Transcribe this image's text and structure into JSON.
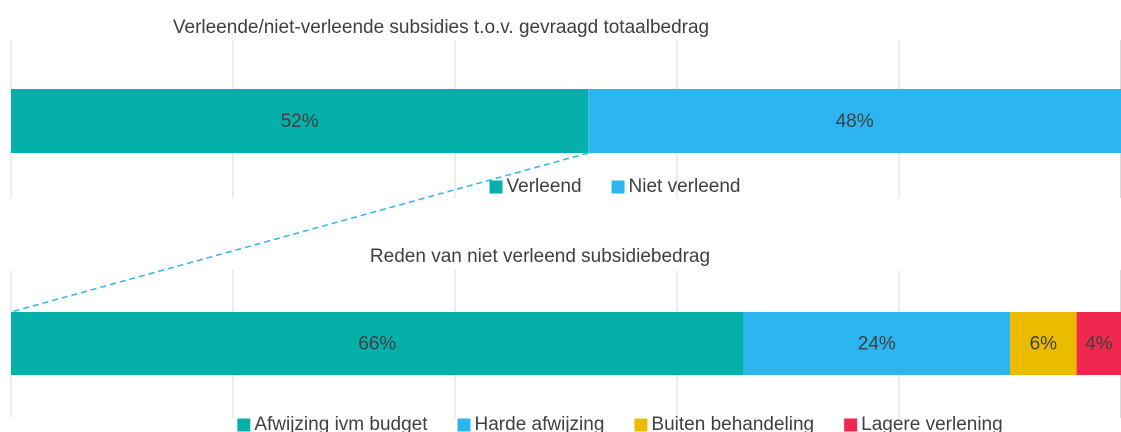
{
  "chart_data": [
    {
      "type": "bar",
      "orientation": "horizontal",
      "stacked": true,
      "title": "Verleende/niet-verleende subsidies t.o.v. gevraagd totaalbedrag",
      "series": [
        {
          "name": "Verleend",
          "color": "#06b0aa",
          "values": [
            52
          ],
          "value_labels": [
            "52%"
          ]
        },
        {
          "name": "Niet verleend",
          "color": "#2db5f0",
          "values": [
            48
          ],
          "value_labels": [
            "48%"
          ]
        }
      ],
      "xlim": [
        0,
        100
      ],
      "xticks": [
        0,
        20,
        40,
        60,
        80,
        100
      ],
      "grid": true,
      "legend": "bottom"
    },
    {
      "type": "bar",
      "orientation": "horizontal",
      "stacked": true,
      "title": "Reden van niet verleend subsidiebedrag",
      "series": [
        {
          "name": "Afwijzing ivm budget",
          "color": "#06b0aa",
          "values": [
            66
          ],
          "value_labels": [
            "66%"
          ]
        },
        {
          "name": "Harde afwijzing",
          "color": "#2db5f0",
          "values": [
            24
          ],
          "value_labels": [
            "24%"
          ]
        },
        {
          "name": "Buiten behandeling",
          "color": "#ebbb00",
          "values": [
            6
          ],
          "value_labels": [
            "6%"
          ]
        },
        {
          "name": "Lagere verlening",
          "color": "#f0274e",
          "values": [
            4
          ],
          "value_labels": [
            "4%"
          ]
        }
      ],
      "xlim": [
        0,
        100
      ],
      "xticks": [
        0,
        20,
        40,
        60,
        80,
        100
      ],
      "grid": true,
      "legend": "bottom"
    }
  ]
}
